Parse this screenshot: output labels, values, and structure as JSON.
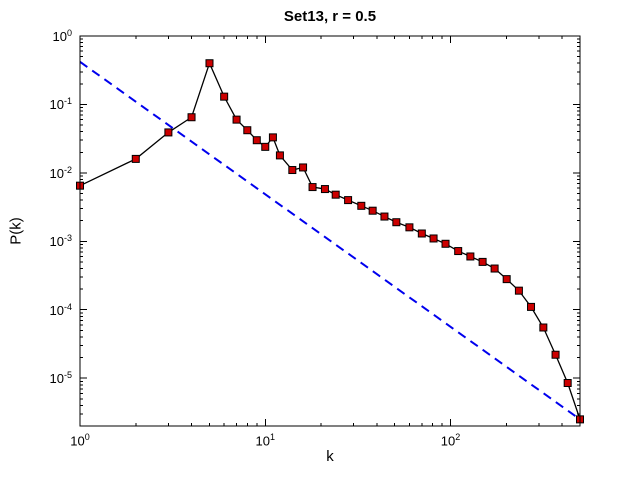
{
  "figure": {
    "background": "#ffffff",
    "frame_color": "#000000"
  },
  "chart_data": {
    "type": "line",
    "title": "Set13, r = 0.5",
    "xlabel": "k",
    "ylabel": "P(k)",
    "xscale": "log",
    "yscale": "log",
    "xlim": [
      1,
      500
    ],
    "ylim": [
      2e-06,
      1
    ],
    "x_tick_exponents": [
      0,
      1,
      2
    ],
    "y_tick_exponents": [
      0,
      -1,
      -2,
      -3,
      -4,
      -5
    ],
    "grid": false,
    "legend_position": "none",
    "series": [
      {
        "name": "power-law-reference",
        "type": "line",
        "line_style": "dashed",
        "line_color": "#0000ee",
        "line_width": 2,
        "marker": "none",
        "x": [
          1,
          500
        ],
        "y": [
          0.42,
          2.5e-06
        ]
      },
      {
        "name": "degree-distribution",
        "type": "line+markers",
        "line_style": "solid",
        "line_color": "#000000",
        "line_width": 1.3,
        "marker": "square",
        "marker_color": "#cc0000",
        "marker_edge": "#000000",
        "marker_size": 7,
        "x": [
          1,
          2,
          3,
          4,
          5,
          6,
          7,
          8,
          9,
          10,
          11,
          12,
          14,
          16,
          18,
          21,
          24,
          28,
          33,
          38,
          44,
          51,
          60,
          70,
          81,
          94,
          110,
          128,
          149,
          173,
          201,
          234,
          272,
          317,
          369,
          429,
          500
        ],
        "y": [
          0.0065,
          0.016,
          0.039,
          0.065,
          0.4,
          0.13,
          0.06,
          0.042,
          0.03,
          0.024,
          0.033,
          0.018,
          0.011,
          0.012,
          0.0062,
          0.0058,
          0.0048,
          0.004,
          0.0033,
          0.0028,
          0.0023,
          0.0019,
          0.0016,
          0.0013,
          0.0011,
          0.00092,
          0.00072,
          0.0006,
          0.0005,
          0.0004,
          0.00028,
          0.00019,
          0.00011,
          5.5e-05,
          2.2e-05,
          8.5e-06,
          2.5e-06
        ]
      }
    ]
  }
}
